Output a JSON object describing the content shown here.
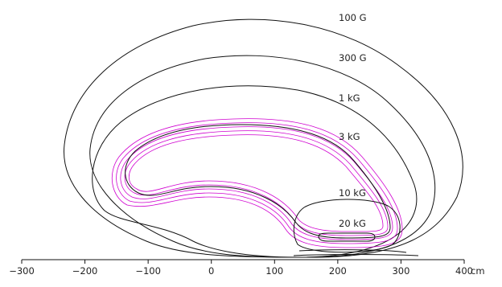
{
  "chart_data": {
    "type": "diagram",
    "title": "",
    "xlabel": "cm",
    "x_axis": {
      "min": -300,
      "max": 400,
      "ticks": [
        -300,
        -200,
        -100,
        0,
        100,
        200,
        300,
        400
      ]
    },
    "contour_labels": [
      "100 G",
      "300 G",
      "1 kG",
      "3 kG",
      "10 kG",
      "20 kG"
    ],
    "colors": {
      "contour": "#111111",
      "coil": "#d000d0"
    }
  }
}
